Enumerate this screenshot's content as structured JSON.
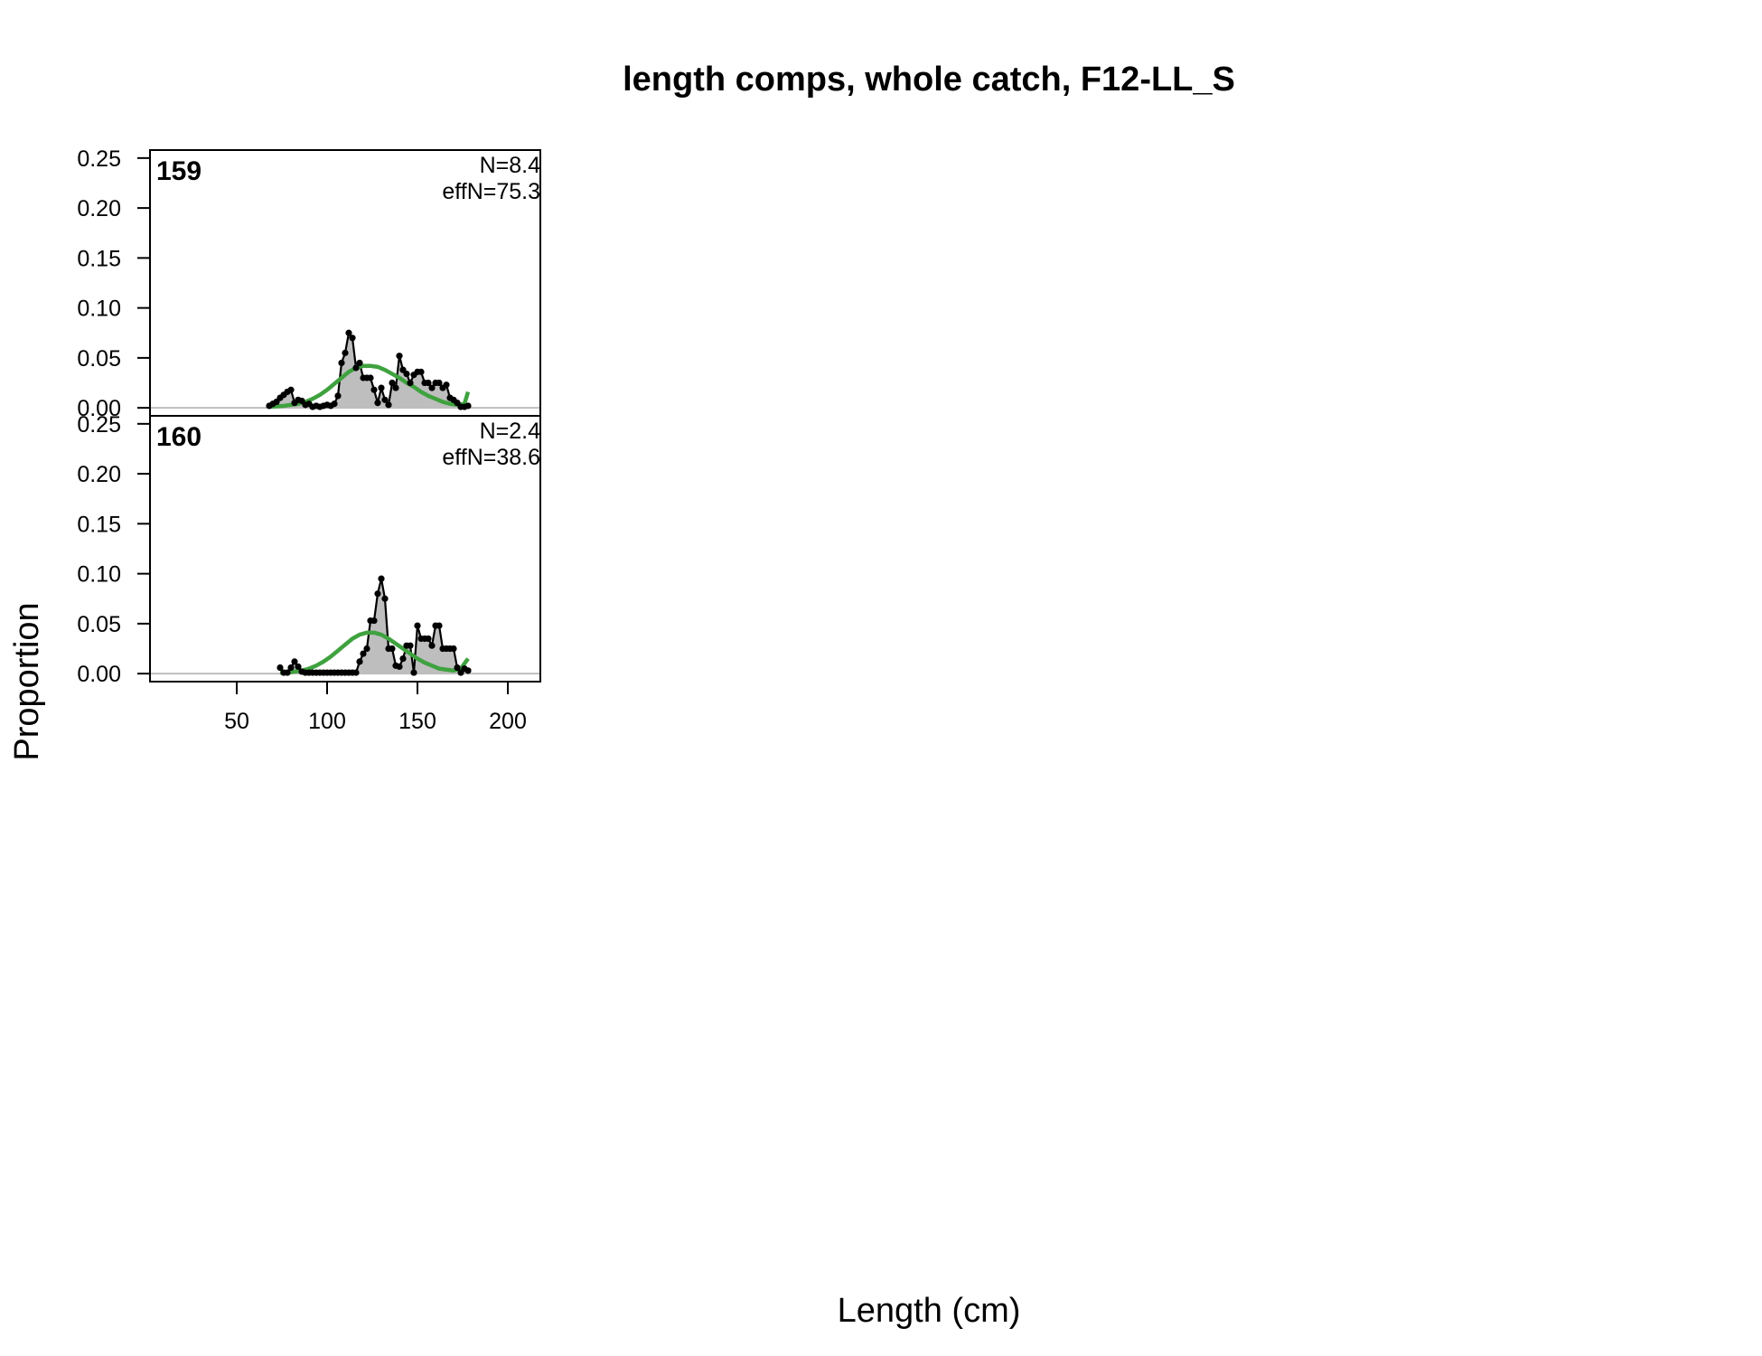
{
  "chart_data": {
    "type": "area",
    "title": "length comps, whole catch, F12-LL_S",
    "xlabel": "Length (cm)",
    "ylabel": "Proportion",
    "xlim": [
      2,
      218
    ],
    "ylim": [
      -0.008,
      0.258
    ],
    "x_ticks": [
      50,
      100,
      150,
      200
    ],
    "x_tick_labels": [
      "50",
      "100",
      "150",
      "200"
    ],
    "y_ticks": [
      0,
      0.05,
      0.1,
      0.15,
      0.2,
      0.25
    ],
    "y_tick_labels": [
      "0.00",
      "0.05",
      "0.10",
      "0.15",
      "0.20",
      "0.25"
    ],
    "colors": {
      "observed_fill": "#bebebe",
      "observed_line": "#000000",
      "expected": "#3fa23f",
      "zero_line": "#bebebe"
    },
    "series_legend": [],
    "panels": [
      {
        "label": "159",
        "n_text": "N=8.4",
        "effn_text": "effN=75.3",
        "observed": {
          "x": [
            68,
            70,
            72,
            74,
            76,
            78,
            80,
            82,
            84,
            86,
            88,
            90,
            92,
            94,
            96,
            98,
            100,
            102,
            104,
            106,
            108,
            110,
            112,
            114,
            116,
            118,
            120,
            122,
            124,
            126,
            128,
            130,
            132,
            134,
            136,
            138,
            140,
            142,
            144,
            146,
            148,
            150,
            152,
            154,
            156,
            158,
            160,
            162,
            164,
            166,
            168,
            170,
            172,
            174,
            176,
            178
          ],
          "y": [
            0.002,
            0.004,
            0.006,
            0.01,
            0.013,
            0.016,
            0.018,
            0.005,
            0.008,
            0.007,
            0.003,
            0.004,
            0.001,
            0.002,
            0.001,
            0.002,
            0.003,
            0.002,
            0.004,
            0.012,
            0.045,
            0.055,
            0.075,
            0.07,
            0.04,
            0.045,
            0.03,
            0.03,
            0.03,
            0.018,
            0.005,
            0.02,
            0.008,
            0.003,
            0.025,
            0.02,
            0.052,
            0.038,
            0.034,
            0.025,
            0.033,
            0.036,
            0.036,
            0.025,
            0.025,
            0.02,
            0.025,
            0.025,
            0.02,
            0.023,
            0.01,
            0.008,
            0.005,
            0.001,
            0.001,
            0.002
          ]
        },
        "expected": {
          "x": [
            68,
            72,
            76,
            80,
            84,
            88,
            92,
            96,
            100,
            104,
            108,
            112,
            116,
            120,
            124,
            128,
            132,
            136,
            140,
            144,
            148,
            152,
            156,
            160,
            164,
            168,
            172,
            176,
            178
          ],
          "y": [
            0.001,
            0.0015,
            0.002,
            0.003,
            0.004,
            0.006,
            0.009,
            0.013,
            0.018,
            0.024,
            0.03,
            0.036,
            0.04,
            0.042,
            0.042,
            0.041,
            0.038,
            0.034,
            0.03,
            0.025,
            0.021,
            0.016,
            0.012,
            0.009,
            0.006,
            0.004,
            0.003,
            0.004,
            0.016
          ]
        }
      },
      {
        "label": "160",
        "n_text": "N=2.4",
        "effn_text": "effN=38.6",
        "observed": {
          "x": [
            74,
            76,
            78,
            80,
            82,
            84,
            86,
            88,
            90,
            92,
            94,
            96,
            98,
            100,
            102,
            104,
            106,
            108,
            110,
            112,
            114,
            116,
            118,
            120,
            122,
            124,
            126,
            128,
            130,
            132,
            134,
            136,
            138,
            140,
            142,
            144,
            146,
            148,
            150,
            152,
            154,
            156,
            158,
            160,
            162,
            164,
            166,
            168,
            170,
            172,
            174,
            176,
            178
          ],
          "y": [
            0.006,
            0.001,
            0.001,
            0.006,
            0.012,
            0.007,
            0.002,
            0.001,
            0.001,
            0.001,
            0.001,
            0.001,
            0.001,
            0.001,
            0.001,
            0.001,
            0.001,
            0.001,
            0.001,
            0.001,
            0.001,
            0.001,
            0.012,
            0.02,
            0.025,
            0.053,
            0.053,
            0.08,
            0.095,
            0.075,
            0.025,
            0.025,
            0.008,
            0.007,
            0.015,
            0.028,
            0.028,
            0.001,
            0.048,
            0.035,
            0.035,
            0.035,
            0.028,
            0.048,
            0.048,
            0.025,
            0.025,
            0.025,
            0.025,
            0.006,
            0.001,
            0.005,
            0.003
          ]
        },
        "expected": {
          "x": [
            74,
            78,
            82,
            86,
            90,
            94,
            98,
            102,
            106,
            110,
            114,
            118,
            122,
            126,
            130,
            134,
            138,
            142,
            146,
            150,
            154,
            158,
            162,
            166,
            170,
            174,
            178
          ],
          "y": [
            0.001,
            0.001,
            0.002,
            0.003,
            0.005,
            0.008,
            0.012,
            0.017,
            0.023,
            0.029,
            0.035,
            0.039,
            0.041,
            0.041,
            0.039,
            0.035,
            0.03,
            0.025,
            0.02,
            0.015,
            0.011,
            0.008,
            0.005,
            0.004,
            0.003,
            0.005,
            0.015
          ]
        }
      }
    ]
  }
}
